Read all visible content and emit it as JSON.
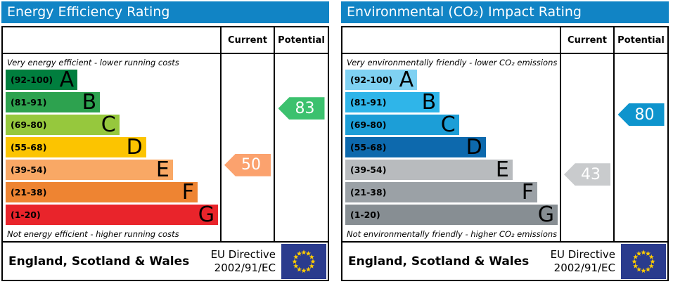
{
  "charts": [
    {
      "title": "Energy Efficiency Rating",
      "columns": {
        "current": "Current",
        "potential": "Potential"
      },
      "top_note": "Very energy efficient - lower running costs",
      "bottom_note": "Not energy efficient - higher running costs",
      "bands": [
        {
          "letter": "A",
          "range": "(92-100)",
          "min": 92,
          "max": 100,
          "color": "#007e3e",
          "width_pct": 33.5
        },
        {
          "letter": "B",
          "range": "(81-91)",
          "min": 81,
          "max": 91,
          "color": "#2da24f",
          "width_pct": 44
        },
        {
          "letter": "C",
          "range": "(69-80)",
          "min": 69,
          "max": 80,
          "color": "#96c83d",
          "width_pct": 53
        },
        {
          "letter": "D",
          "range": "(55-68)",
          "min": 55,
          "max": 68,
          "color": "#fcc400",
          "width_pct": 65.5
        },
        {
          "letter": "E",
          "range": "(39-54)",
          "min": 39,
          "max": 54,
          "color": "#f9a865",
          "width_pct": 78
        },
        {
          "letter": "F",
          "range": "(21-38)",
          "min": 21,
          "max": 38,
          "color": "#ee8432",
          "width_pct": 89.5
        },
        {
          "letter": "G",
          "range": "(1-20)",
          "min": 1,
          "max": 20,
          "color": "#e9242b",
          "width_pct": 99
        }
      ],
      "current": {
        "value": 50,
        "band": "E",
        "color": "#fba26e"
      },
      "potential": {
        "value": 83,
        "band": "B",
        "color": "#3cc16e"
      },
      "footer": {
        "region": "England, Scotland & Wales",
        "directive_line1": "EU Directive",
        "directive_line2": "2002/91/EC",
        "flag_bg": "#2a3b8d",
        "flag_star_color": "#ffcc00"
      }
    },
    {
      "title": "Environmental (CO₂) Impact Rating",
      "columns": {
        "current": "Current",
        "potential": "Potential"
      },
      "top_note": "Very environmentally friendly - lower CO₂ emissions",
      "bottom_note": "Not environmentally friendly - higher CO₂ emissions",
      "bands": [
        {
          "letter": "A",
          "range": "(92-100)",
          "min": 92,
          "max": 100,
          "color": "#7fd1f2",
          "width_pct": 33.5
        },
        {
          "letter": "B",
          "range": "(81-91)",
          "min": 81,
          "max": 91,
          "color": "#2fb5e9",
          "width_pct": 44
        },
        {
          "letter": "C",
          "range": "(69-80)",
          "min": 69,
          "max": 80,
          "color": "#1c9ed7",
          "width_pct": 53
        },
        {
          "letter": "D",
          "range": "(55-68)",
          "min": 55,
          "max": 68,
          "color": "#0d69ad",
          "width_pct": 65.5
        },
        {
          "letter": "E",
          "range": "(39-54)",
          "min": 39,
          "max": 54,
          "color": "#b8bbbe",
          "width_pct": 78
        },
        {
          "letter": "F",
          "range": "(21-38)",
          "min": 21,
          "max": 38,
          "color": "#9ba1a6",
          "width_pct": 89.5
        },
        {
          "letter": "G",
          "range": "(1-20)",
          "min": 1,
          "max": 20,
          "color": "#878e93",
          "width_pct": 99
        }
      ],
      "current": {
        "value": 43,
        "band": "E",
        "color": "#c9cbcd"
      },
      "potential": {
        "value": 80,
        "band": "C",
        "color": "#0e94cd"
      },
      "footer": {
        "region": "England, Scotland & Wales",
        "directive_line1": "EU Directive",
        "directive_line2": "2002/91/EC",
        "flag_bg": "#2a3b8d",
        "flag_star_color": "#ffcc00"
      }
    }
  ],
  "chart_data": [
    {
      "type": "bar",
      "orientation": "horizontal",
      "title": "Energy Efficiency Rating",
      "categories": [
        "A (92-100)",
        "B (81-91)",
        "C (69-80)",
        "D (55-68)",
        "E (39-54)",
        "F (21-38)",
        "G (1-20)"
      ],
      "values": [
        33.5,
        44,
        53,
        65.5,
        78,
        89.5,
        99
      ],
      "values_note": "band bar lengths as % of column width (fixed scale graphic)",
      "annotations": [
        {
          "label": "Current",
          "value": 50,
          "band": "E"
        },
        {
          "label": "Potential",
          "value": 83,
          "band": "B"
        }
      ],
      "top_note": "Very energy efficient - lower running costs",
      "bottom_note": "Not energy efficient - higher running costs",
      "footer": "England, Scotland & Wales — EU Directive 2002/91/EC"
    },
    {
      "type": "bar",
      "orientation": "horizontal",
      "title": "Environmental (CO₂) Impact Rating",
      "categories": [
        "A (92-100)",
        "B (81-91)",
        "C (69-80)",
        "D (55-68)",
        "E (39-54)",
        "F (21-38)",
        "G (1-20)"
      ],
      "values": [
        33.5,
        44,
        53,
        65.5,
        78,
        89.5,
        99
      ],
      "values_note": "band bar lengths as % of column width (fixed scale graphic)",
      "annotations": [
        {
          "label": "Current",
          "value": 43,
          "band": "E"
        },
        {
          "label": "Potential",
          "value": 80,
          "band": "C"
        }
      ],
      "top_note": "Very environmentally friendly - lower CO₂ emissions",
      "bottom_note": "Not environmentally friendly - higher CO₂ emissions",
      "footer": "England, Scotland & Wales — EU Directive 2002/91/EC"
    }
  ]
}
